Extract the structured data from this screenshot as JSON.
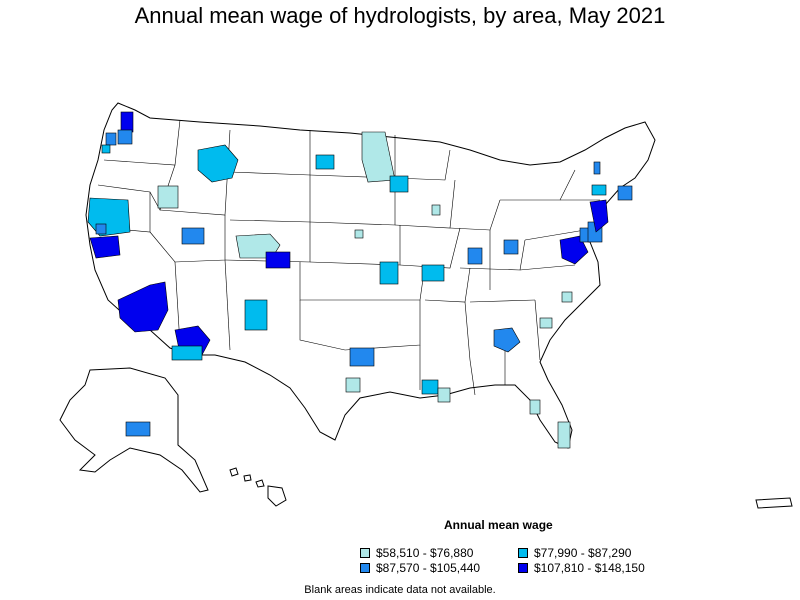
{
  "title": "Annual mean wage of hydrologists, by area, May 2021",
  "legend": {
    "title": "Annual mean wage",
    "items": [
      {
        "label": "$58,510 - $76,880",
        "color": "#b0e8e8"
      },
      {
        "label": "$77,990 - $87,290",
        "color": "#00bbee"
      },
      {
        "label": "$87,570 - $105,440",
        "color": "#2288ee"
      },
      {
        "label": "$107,810 - $148,150",
        "color": "#0000ee"
      }
    ]
  },
  "note": "Blank areas indicate data not available."
}
